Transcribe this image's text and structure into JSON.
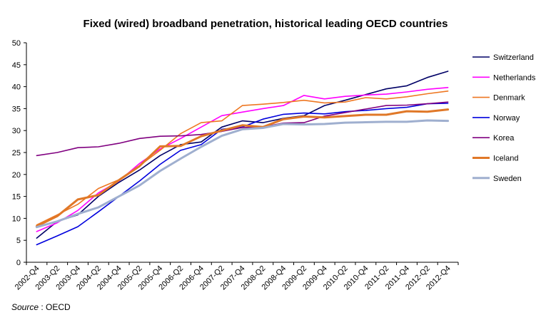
{
  "chart_data": {
    "type": "line",
    "title": "Fixed (wired) broadband penetration, historical leading OECD countries",
    "xlabel": "",
    "ylabel": "",
    "ylim": [
      0,
      50
    ],
    "yticks": [
      0,
      5,
      10,
      15,
      20,
      25,
      30,
      35,
      40,
      45,
      50
    ],
    "grid": false,
    "legend_position": "right",
    "x": [
      "2002-Q4",
      "2003-Q2",
      "2003-Q4",
      "2004-Q2",
      "2004-Q4",
      "2005-Q2",
      "2005-Q4",
      "2006-Q2",
      "2006-Q4",
      "2007-Q2",
      "2007-Q4",
      "2008-Q2",
      "2008-Q4",
      "2009-Q2",
      "2009-Q4",
      "2010-Q2",
      "2010-Q4",
      "2011-Q2",
      "2011-Q4",
      "2012-Q2",
      "2012-Q4"
    ],
    "series": [
      {
        "name": "Switzerland",
        "color": "#000066",
        "width": 1.6,
        "values": [
          5.5,
          9.3,
          10.8,
          15.0,
          18.2,
          21.0,
          24.3,
          26.8,
          27.4,
          30.8,
          32.2,
          31.8,
          32.8,
          33.4,
          35.7,
          36.9,
          38.2,
          39.5,
          40.2,
          42.1,
          43.5
        ]
      },
      {
        "name": "Netherlands",
        "color": "#ff00ff",
        "width": 1.6,
        "values": [
          7.0,
          9.0,
          11.8,
          15.8,
          18.5,
          22.5,
          25.8,
          28.2,
          30.8,
          33.4,
          34.2,
          35.0,
          35.7,
          38.0,
          37.2,
          37.8,
          38.1,
          38.3,
          38.8,
          39.4,
          39.8
        ]
      },
      {
        "name": "Denmark",
        "color": "#ee7722",
        "width": 1.6,
        "values": [
          8.5,
          10.8,
          13.2,
          16.8,
          18.8,
          22.0,
          25.5,
          29.3,
          31.8,
          32.2,
          35.7,
          36.0,
          36.4,
          36.9,
          36.3,
          36.5,
          37.5,
          37.2,
          37.7,
          38.4,
          39.0
        ]
      },
      {
        "name": "Norway",
        "color": "#0000dd",
        "width": 1.6,
        "values": [
          4.0,
          6.0,
          8.1,
          11.5,
          15.0,
          18.5,
          22.3,
          25.5,
          26.8,
          30.3,
          30.8,
          32.6,
          33.7,
          34.0,
          33.8,
          34.3,
          34.6,
          35.0,
          35.3,
          36.1,
          36.2
        ]
      },
      {
        "name": "Korea",
        "color": "#800080",
        "width": 1.6,
        "values": [
          24.3,
          25.0,
          26.1,
          26.3,
          27.1,
          28.2,
          28.7,
          28.8,
          29.1,
          29.8,
          30.7,
          30.8,
          31.7,
          31.8,
          33.3,
          34.1,
          34.9,
          35.7,
          35.8,
          36.1,
          36.5
        ]
      },
      {
        "name": "Iceland",
        "color": "#e07828",
        "width": 3,
        "values": [
          8.2,
          10.5,
          14.3,
          15.3,
          18.7,
          21.9,
          26.4,
          26.5,
          28.7,
          30.0,
          31.2,
          30.8,
          32.6,
          33.2,
          33.0,
          33.3,
          33.6,
          33.6,
          34.4,
          34.3,
          34.8
        ]
      },
      {
        "name": "Sweden",
        "color": "#9fafcf",
        "width": 3,
        "values": [
          8.0,
          9.3,
          11.0,
          12.5,
          15.0,
          17.5,
          20.8,
          23.6,
          26.3,
          28.8,
          30.3,
          30.6,
          31.5,
          31.4,
          31.5,
          31.8,
          31.9,
          32.0,
          32.0,
          32.3,
          32.2
        ]
      }
    ]
  },
  "source": {
    "label": "Source",
    "text": ": OECD"
  }
}
